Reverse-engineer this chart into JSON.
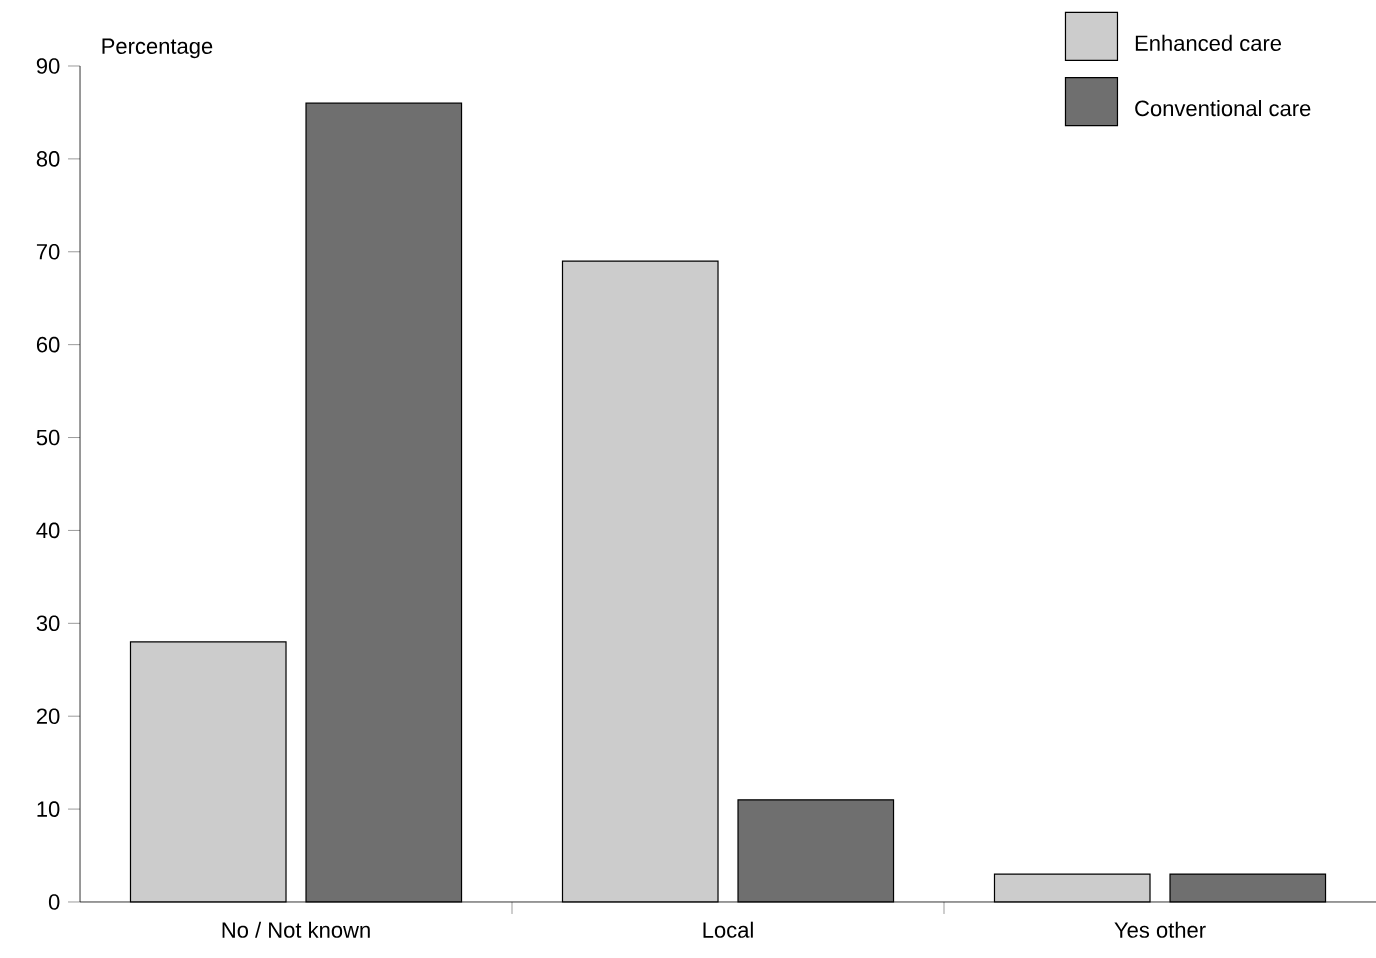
{
  "chart_data": {
    "type": "bar",
    "ylabel": "Percentage",
    "categories": [
      "No / Not known",
      "Local",
      "Yes other"
    ],
    "series": [
      {
        "name": "Enhanced care",
        "color": "#cccccc",
        "values": [
          28,
          69,
          3
        ]
      },
      {
        "name": "Conventional care",
        "color": "#6f6f6f",
        "values": [
          86,
          11,
          3
        ]
      }
    ],
    "ylim": [
      0,
      90
    ],
    "yticks": [
      0,
      10,
      20,
      30,
      40,
      50,
      60,
      70,
      80,
      90
    ],
    "legend": "top right"
  }
}
